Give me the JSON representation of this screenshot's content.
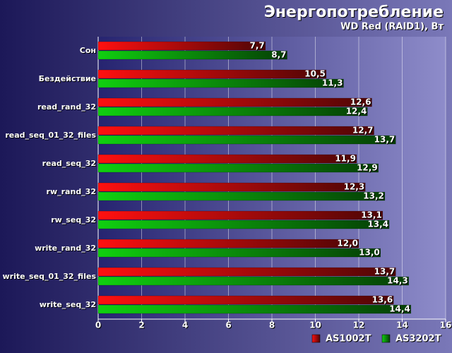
{
  "chart_data": {
    "type": "hbar",
    "title": "Энергопотребление",
    "subtitle": "WD Red (RAID1), Вт",
    "categories": [
      "Сон",
      "Бездействие",
      "read_rand_32",
      "read_seq_01_32_files",
      "read_seq_32",
      "rw_rand_32",
      "rw_seq_32",
      "write_rand_32",
      "write_seq_01_32_files",
      "write_seq_32"
    ],
    "series": [
      {
        "name": "AS1002T",
        "color": "#ff1010",
        "values": [
          7.7,
          10.5,
          12.6,
          12.7,
          11.9,
          12.3,
          13.1,
          12.0,
          13.7,
          13.6
        ],
        "value_labels": [
          "7,7",
          "10,5",
          "12,6",
          "12,7",
          "11,9",
          "12,3",
          "13,1",
          "12,0",
          "13,7",
          "13,6"
        ]
      },
      {
        "name": "AS3202T",
        "color": "#10d010",
        "values": [
          8.7,
          11.3,
          12.4,
          13.7,
          12.9,
          13.2,
          13.4,
          13.0,
          14.3,
          14.4
        ],
        "value_labels": [
          "8,7",
          "11,3",
          "12,4",
          "13,7",
          "12,9",
          "13,2",
          "13,4",
          "13,0",
          "14,3",
          "14,4"
        ]
      }
    ],
    "xlim": [
      0,
      16
    ],
    "xticks": [
      0,
      2,
      4,
      6,
      8,
      10,
      12,
      14,
      16
    ],
    "grid": true,
    "legend": "bottom-right"
  }
}
